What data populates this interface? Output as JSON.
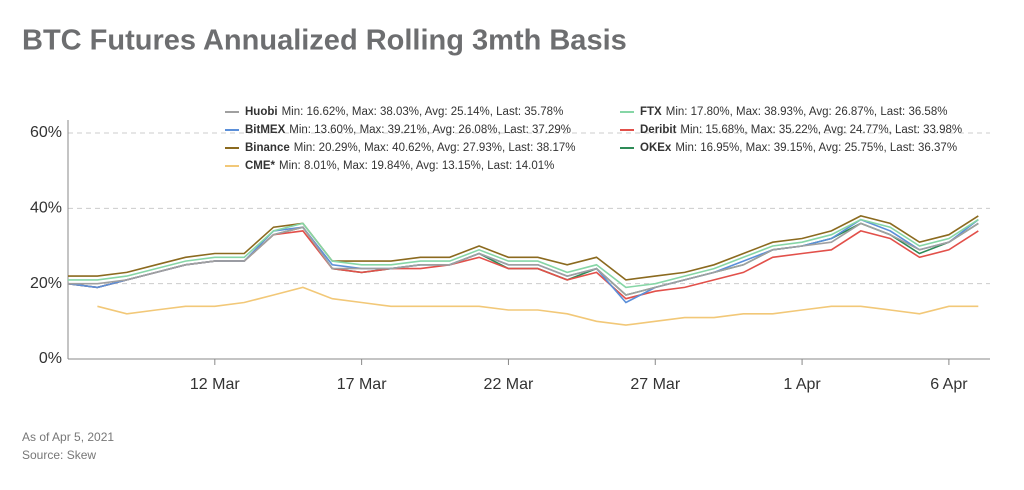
{
  "chart_data": {
    "type": "line",
    "title": "BTC Futures Annualized Rolling 3mth Basis",
    "footnotes": [
      "As of Apr 5, 2021",
      "Source: Skew"
    ],
    "x": [
      7,
      8,
      9,
      10,
      11,
      12,
      13,
      14,
      15,
      16,
      17,
      18,
      19,
      20,
      21,
      22,
      23,
      24,
      25,
      26,
      27,
      28,
      29,
      30,
      31,
      32,
      33,
      34,
      35,
      36,
      37,
      38
    ],
    "xlim": [
      7,
      38.4
    ],
    "xticks": [
      {
        "value": 12,
        "label": "12 Mar"
      },
      {
        "value": 17,
        "label": "17 Mar"
      },
      {
        "value": 22,
        "label": "22 Mar"
      },
      {
        "value": 27,
        "label": "27 Mar"
      },
      {
        "value": 32,
        "label": "1 Apr"
      },
      {
        "value": 37,
        "label": "6 Apr"
      }
    ],
    "ylim": [
      0,
      60
    ],
    "yticks": [
      {
        "value": 0,
        "label": "0%"
      },
      {
        "value": 20,
        "label": "20%"
      },
      {
        "value": 40,
        "label": "40%"
      },
      {
        "value": 60,
        "label": "60%"
      }
    ],
    "grid": true,
    "series": [
      {
        "name": "Huobi",
        "legend_stats": "Min: 16.62%, Max: 38.03%, Avg: 25.14%, Last: 35.78%",
        "color": "#a0a0a0",
        "values": [
          20,
          20,
          21,
          23,
          25,
          26,
          26,
          33,
          35,
          24,
          24,
          24,
          25,
          25,
          28,
          25,
          25,
          22,
          24,
          17,
          19,
          21,
          23,
          25,
          29,
          30,
          31,
          36,
          33,
          29,
          31,
          36
        ]
      },
      {
        "name": "FTX",
        "legend_stats": "Min: 17.80%, Max: 38.93%, Avg: 26.87%, Last: 36.58%",
        "color": "#86d6a6",
        "values": [
          21,
          21,
          22,
          24,
          26,
          27,
          27,
          34,
          36,
          26,
          25,
          25,
          26,
          26,
          29,
          26,
          26,
          23,
          25,
          19,
          20,
          22,
          24,
          27,
          30,
          31,
          33,
          37,
          35,
          30,
          32,
          37
        ]
      },
      {
        "name": "BitMEX",
        "legend_stats": "Min: 13.60%, Max: 39.21%, Avg: 26.08%, Last: 37.29%",
        "color": "#5b8fd9",
        "values": [
          20,
          19,
          21,
          23,
          25,
          26,
          26,
          34,
          35,
          25,
          24,
          24,
          25,
          25,
          28,
          25,
          25,
          22,
          24,
          15,
          19,
          21,
          23,
          26,
          29,
          30,
          32,
          37,
          34,
          29,
          31,
          37
        ]
      },
      {
        "name": "Deribit",
        "legend_stats": "Min: 15.68%, Max: 35.22%, Avg: 24.77%, Last: 33.98%",
        "color": "#e2504a",
        "values": [
          20,
          19,
          21,
          23,
          25,
          26,
          26,
          33,
          34,
          24,
          23,
          24,
          24,
          25,
          27,
          24,
          24,
          21,
          23,
          16,
          18,
          19,
          21,
          23,
          27,
          28,
          29,
          34,
          32,
          27,
          29,
          34
        ]
      },
      {
        "name": "Binance",
        "legend_stats": "Min: 20.29%, Max: 40.62%, Avg: 27.93%, Last: 38.17%",
        "color": "#8b6a1f",
        "values": [
          22,
          22,
          23,
          25,
          27,
          28,
          28,
          35,
          36,
          26,
          26,
          26,
          27,
          27,
          30,
          27,
          27,
          25,
          27,
          21,
          22,
          23,
          25,
          28,
          31,
          32,
          34,
          38,
          36,
          31,
          33,
          38
        ]
      },
      {
        "name": "OKEx",
        "legend_stats": "Min: 16.95%, Max: 39.15%, Avg: 25.75%, Last: 36.37%",
        "color": "#2e8b57",
        "values": [
          20,
          19,
          21,
          23,
          25,
          26,
          26,
          33,
          35,
          24,
          23,
          24,
          25,
          25,
          28,
          24,
          24,
          21,
          24,
          17,
          19,
          21,
          23,
          25,
          29,
          30,
          32,
          36,
          33,
          28,
          31,
          36
        ]
      },
      {
        "name": "CME*",
        "legend_stats": "Min: 8.01%, Max: 19.84%, Avg: 13.15%, Last: 14.01%",
        "color": "#f2c878",
        "values": [
          null,
          14,
          12,
          13,
          14,
          14,
          15,
          17,
          19,
          16,
          15,
          14,
          14,
          14,
          14,
          13,
          13,
          12,
          10,
          9,
          10,
          11,
          11,
          12,
          12,
          13,
          14,
          14,
          13,
          12,
          14,
          14
        ]
      }
    ]
  }
}
